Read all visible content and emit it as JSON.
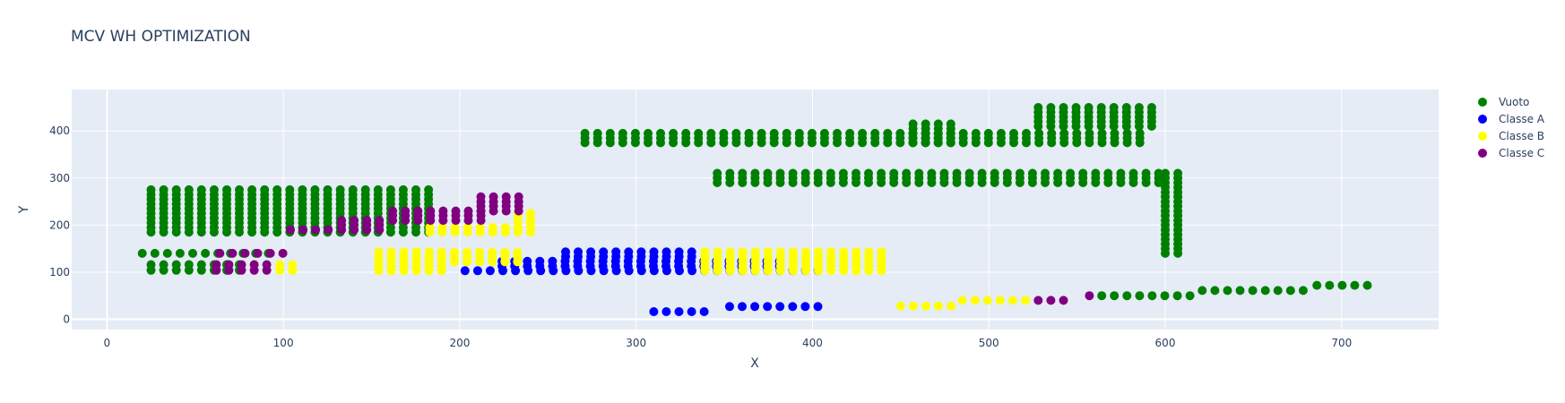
{
  "chart_data": {
    "type": "scatter",
    "title": "MCV WH OPTIMIZATION",
    "xlabel": "X",
    "ylabel": "Y",
    "xlim": [
      -20,
      755
    ],
    "ylim": [
      -22,
      488
    ],
    "xticks": [
      0,
      100,
      200,
      300,
      400,
      500,
      600,
      700
    ],
    "yticks": [
      0,
      100,
      200,
      300,
      400
    ],
    "grid": true,
    "legend_position": "right",
    "colors": {
      "Vuoto": "#008000",
      "Classe A": "#0000ff",
      "Classe B": "#ffff00",
      "Classe C": "#800080"
    },
    "series": [
      {
        "name": "Vuoto",
        "color": "#008000",
        "blocks": [
          {
            "x0": 25,
            "dx": 7.15,
            "nx": 23,
            "y0": 185,
            "dy": 10,
            "ny": 10
          },
          {
            "x0": 20,
            "dx": 7.15,
            "nx": 11,
            "y0": 140,
            "dy": 1,
            "ny": 1
          },
          {
            "x0": 25,
            "dx": 7.15,
            "nx": 8,
            "y0": 104,
            "dy": 12,
            "ny": 2
          },
          {
            "x0": 271,
            "dx": 7.15,
            "nx": 45,
            "y0": 375,
            "dy": 10,
            "ny": 3
          },
          {
            "x0": 457,
            "dx": 7.15,
            "nx": 4,
            "y0": 375,
            "dy": 10,
            "ny": 5
          },
          {
            "x0": 528,
            "dx": 7.15,
            "nx": 10,
            "y0": 410,
            "dy": 10,
            "ny": 5
          },
          {
            "x0": 346,
            "dx": 7.15,
            "nx": 36,
            "y0": 290,
            "dy": 10,
            "ny": 3
          },
          {
            "x0": 600,
            "dx": 7.15,
            "nx": 2,
            "y0": 140,
            "dy": 10,
            "ny": 18
          },
          {
            "x0": 564,
            "dx": 7.15,
            "nx": 8,
            "y0": 50,
            "dy": 1,
            "ny": 1
          },
          {
            "x0": 621,
            "dx": 7.15,
            "nx": 9,
            "y0": 61,
            "dy": 1,
            "ny": 1
          },
          {
            "x0": 686,
            "dx": 7.15,
            "nx": 5,
            "y0": 72,
            "dy": 1,
            "ny": 1
          }
        ]
      },
      {
        "name": "Classe A",
        "color": "#0000ff",
        "blocks": [
          {
            "x0": 203,
            "dx": 7.15,
            "nx": 29,
            "y0": 103,
            "dy": 10,
            "ny": 1
          },
          {
            "x0": 224,
            "dx": 7.15,
            "nx": 23,
            "y0": 113,
            "dy": 10,
            "ny": 2
          },
          {
            "x0": 260,
            "dx": 7.15,
            "nx": 11,
            "y0": 133,
            "dy": 10,
            "ny": 2
          },
          {
            "x0": 310,
            "dx": 7.15,
            "nx": 5,
            "y0": 16,
            "dy": 1,
            "ny": 1
          },
          {
            "x0": 353,
            "dx": 7.15,
            "nx": 8,
            "y0": 27,
            "dy": 1,
            "ny": 1
          }
        ]
      },
      {
        "name": "Classe B",
        "color": "#ffff00",
        "blocks": [
          {
            "x0": 154,
            "dx": 7.15,
            "nx": 6,
            "y0": 103,
            "dy": 10,
            "ny": 5
          },
          {
            "x0": 197,
            "dx": 7.15,
            "nx": 6,
            "y0": 122,
            "dy": 10,
            "ny": 3
          },
          {
            "x0": 339,
            "dx": 7.15,
            "nx": 15,
            "y0": 103,
            "dy": 10,
            "ny": 5
          },
          {
            "x0": 183,
            "dx": 7.15,
            "nx": 9,
            "y0": 185,
            "dy": 10,
            "ny": 2
          },
          {
            "x0": 233,
            "dx": 7.15,
            "nx": 2,
            "y0": 205,
            "dy": 10,
            "ny": 3
          },
          {
            "x0": 98,
            "dx": 7.15,
            "nx": 2,
            "y0": 104,
            "dy": 12,
            "ny": 2
          },
          {
            "x0": 450,
            "dx": 7.15,
            "nx": 5,
            "y0": 28,
            "dy": 1,
            "ny": 1
          },
          {
            "x0": 485,
            "dx": 7.15,
            "nx": 6,
            "y0": 40,
            "dy": 1,
            "ny": 1
          }
        ]
      },
      {
        "name": "Classe C",
        "color": "#800080",
        "blocks": [
          {
            "x0": 62,
            "dx": 7.15,
            "nx": 5,
            "y0": 104,
            "dy": 12,
            "ny": 2
          },
          {
            "x0": 64,
            "dx": 7.15,
            "nx": 6,
            "y0": 140,
            "dy": 1,
            "ny": 1
          },
          {
            "x0": 104,
            "dx": 7.15,
            "nx": 4,
            "y0": 190,
            "dy": 1,
            "ny": 1
          },
          {
            "x0": 133,
            "dx": 7.15,
            "nx": 4,
            "y0": 190,
            "dy": 10,
            "ny": 3
          },
          {
            "x0": 162,
            "dx": 7.15,
            "nx": 8,
            "y0": 210,
            "dy": 10,
            "ny": 3
          },
          {
            "x0": 212,
            "dx": 7.15,
            "nx": 4,
            "y0": 230,
            "dy": 10,
            "ny": 4
          },
          {
            "x0": 528,
            "dx": 7.15,
            "nx": 3,
            "y0": 40,
            "dy": 1,
            "ny": 1
          },
          {
            "x0": 557,
            "dx": 7.15,
            "nx": 1,
            "y0": 50,
            "dy": 1,
            "ny": 1
          }
        ]
      }
    ]
  }
}
